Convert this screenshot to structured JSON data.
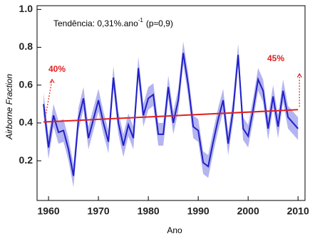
{
  "chart_data": {
    "type": "line",
    "title_parts": [
      "Tendência: 0,31%.ano",
      "-1",
      "(p≈0,9)"
    ],
    "xlabel": "Ano",
    "ylabel": "Airborne Fraction",
    "x": [
      1959,
      1960,
      1961,
      1962,
      1963,
      1964,
      1965,
      1966,
      1967,
      1968,
      1969,
      1970,
      1971,
      1972,
      1973,
      1974,
      1975,
      1976,
      1977,
      1978,
      1979,
      1980,
      1981,
      1982,
      1983,
      1984,
      1985,
      1986,
      1987,
      1988,
      1989,
      1990,
      1991,
      1992,
      1993,
      1994,
      1995,
      1996,
      1997,
      1998,
      1999,
      2000,
      2001,
      2002,
      2003,
      2004,
      2005,
      2006,
      2007,
      2008,
      2009,
      2010
    ],
    "series": [
      {
        "name": "Airborne Fraction",
        "color": "#2020c8",
        "band_color": "#b4b4f0",
        "error": 0.06,
        "values": [
          0.5,
          0.27,
          0.44,
          0.35,
          0.36,
          0.26,
          0.12,
          0.42,
          0.53,
          0.32,
          0.42,
          0.52,
          0.4,
          0.3,
          0.64,
          0.4,
          0.28,
          0.39,
          0.32,
          0.69,
          0.44,
          0.53,
          0.55,
          0.34,
          0.34,
          0.59,
          0.4,
          0.52,
          0.77,
          0.6,
          0.38,
          0.36,
          0.19,
          0.17,
          0.3,
          0.42,
          0.52,
          0.29,
          0.47,
          0.76,
          0.37,
          0.33,
          0.47,
          0.63,
          0.57,
          0.37,
          0.54,
          0.38,
          0.57,
          0.43,
          0.4,
          0.37
        ]
      }
    ],
    "trend": {
      "x": [
        1959,
        2010
      ],
      "values": [
        0.405,
        0.47
      ],
      "color": "#e02020"
    },
    "annotations": [
      "40%",
      "45%"
    ],
    "xlim": [
      1957.7,
      2011.4
    ],
    "ylim": [
      -0.01,
      1.02
    ],
    "xticks": [
      1960,
      1970,
      1980,
      1990,
      2000,
      2010
    ],
    "yticks": [
      0.2,
      0.4,
      0.6,
      0.8,
      {
        "value": 1,
        "label": "1.0"
      }
    ]
  }
}
